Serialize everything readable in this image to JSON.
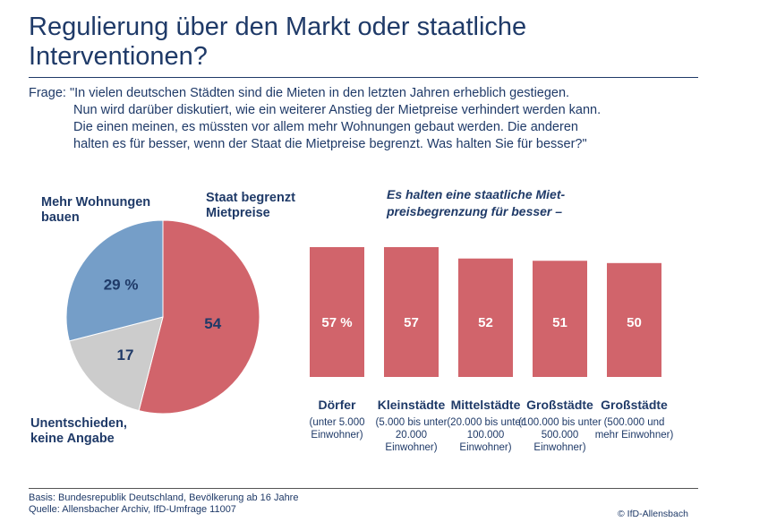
{
  "title": "Regulierung über den Markt oder staatliche Interventionen?",
  "question": {
    "prefix": "Frage:",
    "lines": [
      "\"In vielen deutschen Städten sind die Mieten in den letzten Jahren erheblich gestiegen.",
      "Nun wird darüber diskutiert, wie ein weiterer Anstieg der Mietpreise verhindert werden kann.",
      "Die einen meinen, es müssten vor allem mehr Wohnungen gebaut werden. Die anderen",
      "halten es für besser, wenn der Staat die Mietpreise begrenzt. Was halten Sie für besser?\""
    ]
  },
  "chart_data": [
    {
      "type": "pie",
      "slices": [
        {
          "name": "Staat begrenzt Mietpreise",
          "value": 54,
          "label": "54",
          "color": "#d1646b"
        },
        {
          "name": "Unentschieden, keine Angabe",
          "value": 17,
          "label": "17",
          "color": "#cccccc"
        },
        {
          "name": "Mehr Wohnungen bauen",
          "value": 29,
          "label": "29 %",
          "color": "#759ec8"
        }
      ]
    },
    {
      "type": "bar",
      "title": "Es halten eine staatliche Miet- preisbegrenzung für besser –",
      "color": "#d1646b",
      "ylim": [
        0,
        57
      ],
      "categories": [
        {
          "name": "Dörfer",
          "sub": "(unter 5.000 Einwohner)"
        },
        {
          "name": "Kleinstädte",
          "sub": "(5.000 bis unter 20.000 Einwohner)"
        },
        {
          "name": "Mittelstädte",
          "sub": "(20.000 bis unter 100.000 Einwohner)"
        },
        {
          "name": "Großstädte",
          "sub": "(100.000 bis unter 500.000 Einwohner)"
        },
        {
          "name": "Großstädte",
          "sub": "(500.000 und mehr Einwohner)"
        }
      ],
      "values": [
        57,
        57,
        52,
        51,
        50
      ],
      "labels": [
        "57 %",
        "57",
        "52",
        "51",
        "50"
      ]
    }
  ],
  "footer": {
    "basis": "Basis: Bundesrepublik Deutschland, Bevölkerung ab 16 Jahre",
    "source": "Quelle: Allensbacher Archiv, IfD-Umfrage 11007",
    "copyright": "© IfD-Allensbach"
  }
}
